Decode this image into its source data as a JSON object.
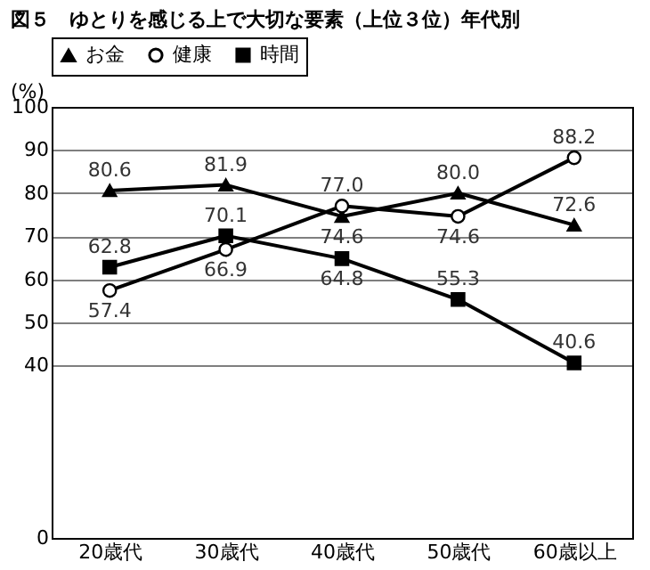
{
  "chart_data": {
    "type": "line",
    "title": "図５　ゆとりを感じる上で大切な要素（上位３位）年代別",
    "ylabel": "(%)",
    "categories": [
      "20歳代",
      "30歳代",
      "40歳代",
      "50歳代",
      "60歳以上"
    ],
    "series": [
      {
        "name": "お金",
        "color": "#000000",
        "marker": "triangle",
        "values": [
          80.6,
          81.9,
          74.6,
          80.0,
          72.6
        ],
        "value_labels": [
          "80.6",
          "81.9",
          "74.6",
          "80.0",
          "72.6"
        ]
      },
      {
        "name": "健康",
        "color": "#000000",
        "marker": "circle",
        "values": [
          57.4,
          66.9,
          77.0,
          74.6,
          88.2
        ],
        "value_labels": [
          "57.4",
          "66.9",
          "77.0",
          "74.6",
          "88.2"
        ]
      },
      {
        "name": "時間",
        "color": "#000000",
        "marker": "square",
        "values": [
          62.8,
          70.1,
          64.8,
          55.3,
          40.6
        ],
        "value_labels": [
          "62.8",
          "70.1",
          "64.8",
          "55.3",
          "40.6"
        ]
      }
    ],
    "ylim": [
      0,
      100
    ],
    "yticks": [
      0,
      40,
      50,
      60,
      70,
      80,
      90,
      100
    ],
    "grid": "y",
    "legend": "top",
    "line_style": "solid"
  }
}
